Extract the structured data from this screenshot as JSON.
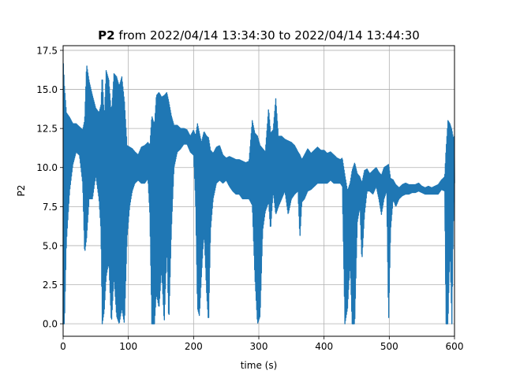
{
  "chart_data": {
    "type": "line",
    "title_bold": "P2",
    "title_rest": " from 2022/04/14 13:34:30 to 2022/04/14 13:44:30",
    "xlabel": "time (s)",
    "ylabel": "P2",
    "xlim": [
      0,
      600
    ],
    "ylim": [
      -0.8,
      17.8
    ],
    "x_ticks": [
      0,
      100,
      200,
      300,
      400,
      500,
      600
    ],
    "x_tick_labels": [
      "0",
      "100",
      "200",
      "300",
      "400",
      "500",
      "600"
    ],
    "y_ticks": [
      0,
      2.5,
      5,
      7.5,
      10,
      12.5,
      15,
      17.5
    ],
    "y_tick_labels": [
      "0.0",
      "2.5",
      "5.0",
      "7.5",
      "10.0",
      "12.5",
      "15.0",
      "17.5"
    ],
    "grid": true,
    "series": [
      {
        "color": "#1f77b4",
        "envelope": [
          [
            0,
            0,
            17.0
          ],
          [
            2,
            0,
            15.2
          ],
          [
            5,
            5.2,
            13.5
          ],
          [
            10,
            8.5,
            13.2
          ],
          [
            15,
            10.2,
            12.8
          ],
          [
            20,
            11.0,
            12.8
          ],
          [
            25,
            10.8,
            12.6
          ],
          [
            30,
            9.0,
            12.4
          ],
          [
            33,
            4.5,
            13.0
          ],
          [
            36,
            5.5,
            16.6
          ],
          [
            40,
            8.0,
            15.5
          ],
          [
            45,
            8.0,
            14.6
          ],
          [
            50,
            9.5,
            13.8
          ],
          [
            55,
            8.0,
            13.5
          ],
          [
            58,
            6.0,
            14.0
          ],
          [
            60,
            0,
            16.0
          ],
          [
            63,
            0.8,
            13.0
          ],
          [
            66,
            3.0,
            16.2
          ],
          [
            70,
            4.0,
            15.6
          ],
          [
            74,
            0,
            13.4
          ],
          [
            78,
            3.0,
            16.0
          ],
          [
            82,
            0.5,
            15.8
          ],
          [
            86,
            0,
            15.2
          ],
          [
            90,
            1.0,
            15.8
          ],
          [
            94,
            0,
            14.2
          ],
          [
            98,
            5.5,
            11.4
          ],
          [
            102,
            7.5,
            11.3
          ],
          [
            106,
            8.5,
            11.2
          ],
          [
            110,
            9.0,
            11.0
          ],
          [
            115,
            9.2,
            10.8
          ],
          [
            120,
            9.0,
            11.3
          ],
          [
            125,
            9.0,
            11.4
          ],
          [
            130,
            9.3,
            11.6
          ],
          [
            133,
            7.0,
            11.4
          ],
          [
            136,
            0,
            13.3
          ],
          [
            140,
            0,
            12.7
          ],
          [
            143,
            2.0,
            14.6
          ],
          [
            147,
            1.0,
            14.8
          ],
          [
            151,
            3.5,
            14.5
          ],
          [
            155,
            0,
            14.6
          ],
          [
            159,
            5.0,
            14.8
          ],
          [
            162,
            0,
            14.2
          ],
          [
            166,
            6.0,
            13.3
          ],
          [
            170,
            10.0,
            12.7
          ],
          [
            175,
            11.0,
            12.7
          ],
          [
            180,
            11.2,
            12.5
          ],
          [
            185,
            11.5,
            12.5
          ],
          [
            190,
            11.5,
            12.4
          ],
          [
            195,
            11.0,
            12.0
          ],
          [
            200,
            10.8,
            12.4
          ],
          [
            203,
            8.0,
            12.0
          ],
          [
            206,
            1.0,
            12.8
          ],
          [
            209,
            0.5,
            12.2
          ],
          [
            212,
            3.0,
            11.6
          ],
          [
            216,
            6.0,
            12.3
          ],
          [
            220,
            2.0,
            12.0
          ],
          [
            223,
            0,
            11.9
          ],
          [
            226,
            6.0,
            11.1
          ],
          [
            230,
            8.0,
            10.9
          ],
          [
            235,
            9.0,
            11.3
          ],
          [
            240,
            9.2,
            11.4
          ],
          [
            245,
            9.0,
            10.8
          ],
          [
            250,
            9.2,
            10.6
          ],
          [
            255,
            8.8,
            10.7
          ],
          [
            260,
            8.5,
            10.6
          ],
          [
            265,
            8.3,
            10.5
          ],
          [
            270,
            8.3,
            10.5
          ],
          [
            275,
            8.0,
            10.4
          ],
          [
            280,
            8.0,
            10.3
          ],
          [
            285,
            8.0,
            10.4
          ],
          [
            290,
            7.6,
            13.0
          ],
          [
            294,
            3.0,
            12.2
          ],
          [
            298,
            0,
            12.0
          ],
          [
            302,
            0.5,
            11.4
          ],
          [
            306,
            6.0,
            11.2
          ],
          [
            310,
            7.2,
            11.0
          ],
          [
            315,
            7.8,
            13.8
          ],
          [
            318,
            6.0,
            12.2
          ],
          [
            322,
            8.5,
            12.4
          ],
          [
            326,
            7.0,
            14.4
          ],
          [
            330,
            7.5,
            12.0
          ],
          [
            335,
            8.0,
            12.0
          ],
          [
            340,
            8.5,
            11.8
          ],
          [
            345,
            7.0,
            11.7
          ],
          [
            350,
            8.0,
            11.6
          ],
          [
            355,
            8.3,
            11.4
          ],
          [
            360,
            8.5,
            11.0
          ],
          [
            363,
            5.5,
            10.8
          ],
          [
            366,
            7.8,
            10.5
          ],
          [
            370,
            8.0,
            10.8
          ],
          [
            375,
            8.5,
            11.2
          ],
          [
            380,
            8.6,
            10.9
          ],
          [
            385,
            8.8,
            11.1
          ],
          [
            390,
            9.0,
            11.3
          ],
          [
            395,
            9.0,
            11.1
          ],
          [
            400,
            9.0,
            11.1
          ],
          [
            405,
            9.0,
            10.9
          ],
          [
            410,
            9.2,
            11.0
          ],
          [
            415,
            9.0,
            10.8
          ],
          [
            420,
            9.0,
            10.6
          ],
          [
            425,
            9.0,
            10.5
          ],
          [
            428,
            8.8,
            10.6
          ],
          [
            432,
            0,
            9.5
          ],
          [
            436,
            1.0,
            8.5
          ],
          [
            440,
            4.0,
            9.0
          ],
          [
            443,
            0,
            9.8
          ],
          [
            447,
            0,
            10.3
          ],
          [
            451,
            6.5,
            9.6
          ],
          [
            455,
            7.5,
            9.4
          ],
          [
            458,
            4.0,
            9.0
          ],
          [
            462,
            7.0,
            9.8
          ],
          [
            466,
            8.5,
            9.9
          ],
          [
            470,
            8.5,
            9.6
          ],
          [
            475,
            8.3,
            9.8
          ],
          [
            480,
            8.8,
            10.0
          ],
          [
            484,
            8.0,
            9.7
          ],
          [
            488,
            7.0,
            9.5
          ],
          [
            492,
            8.0,
            10.0
          ],
          [
            496,
            8.5,
            10.1
          ],
          [
            499,
            0,
            10.2
          ],
          [
            502,
            6.0,
            9.3
          ],
          [
            506,
            8.0,
            9.2
          ],
          [
            510,
            7.5,
            8.9
          ],
          [
            515,
            8.0,
            8.7
          ],
          [
            520,
            8.2,
            8.9
          ],
          [
            525,
            8.3,
            9.0
          ],
          [
            530,
            8.3,
            8.9
          ],
          [
            535,
            8.4,
            8.9
          ],
          [
            540,
            8.4,
            8.9
          ],
          [
            545,
            8.5,
            9.0
          ],
          [
            550,
            8.4,
            8.8
          ],
          [
            555,
            8.3,
            8.7
          ],
          [
            560,
            8.3,
            8.8
          ],
          [
            565,
            8.3,
            8.7
          ],
          [
            570,
            8.3,
            8.8
          ],
          [
            575,
            8.3,
            8.9
          ],
          [
            580,
            8.6,
            9.2
          ],
          [
            585,
            8.5,
            9.4
          ],
          [
            587,
            0,
            11.1
          ],
          [
            590,
            0,
            13.0
          ],
          [
            593,
            5.0,
            12.8
          ],
          [
            596,
            0,
            12.4
          ],
          [
            598,
            6.0,
            11.9
          ],
          [
            600,
            9.0,
            12.0
          ]
        ]
      }
    ]
  }
}
